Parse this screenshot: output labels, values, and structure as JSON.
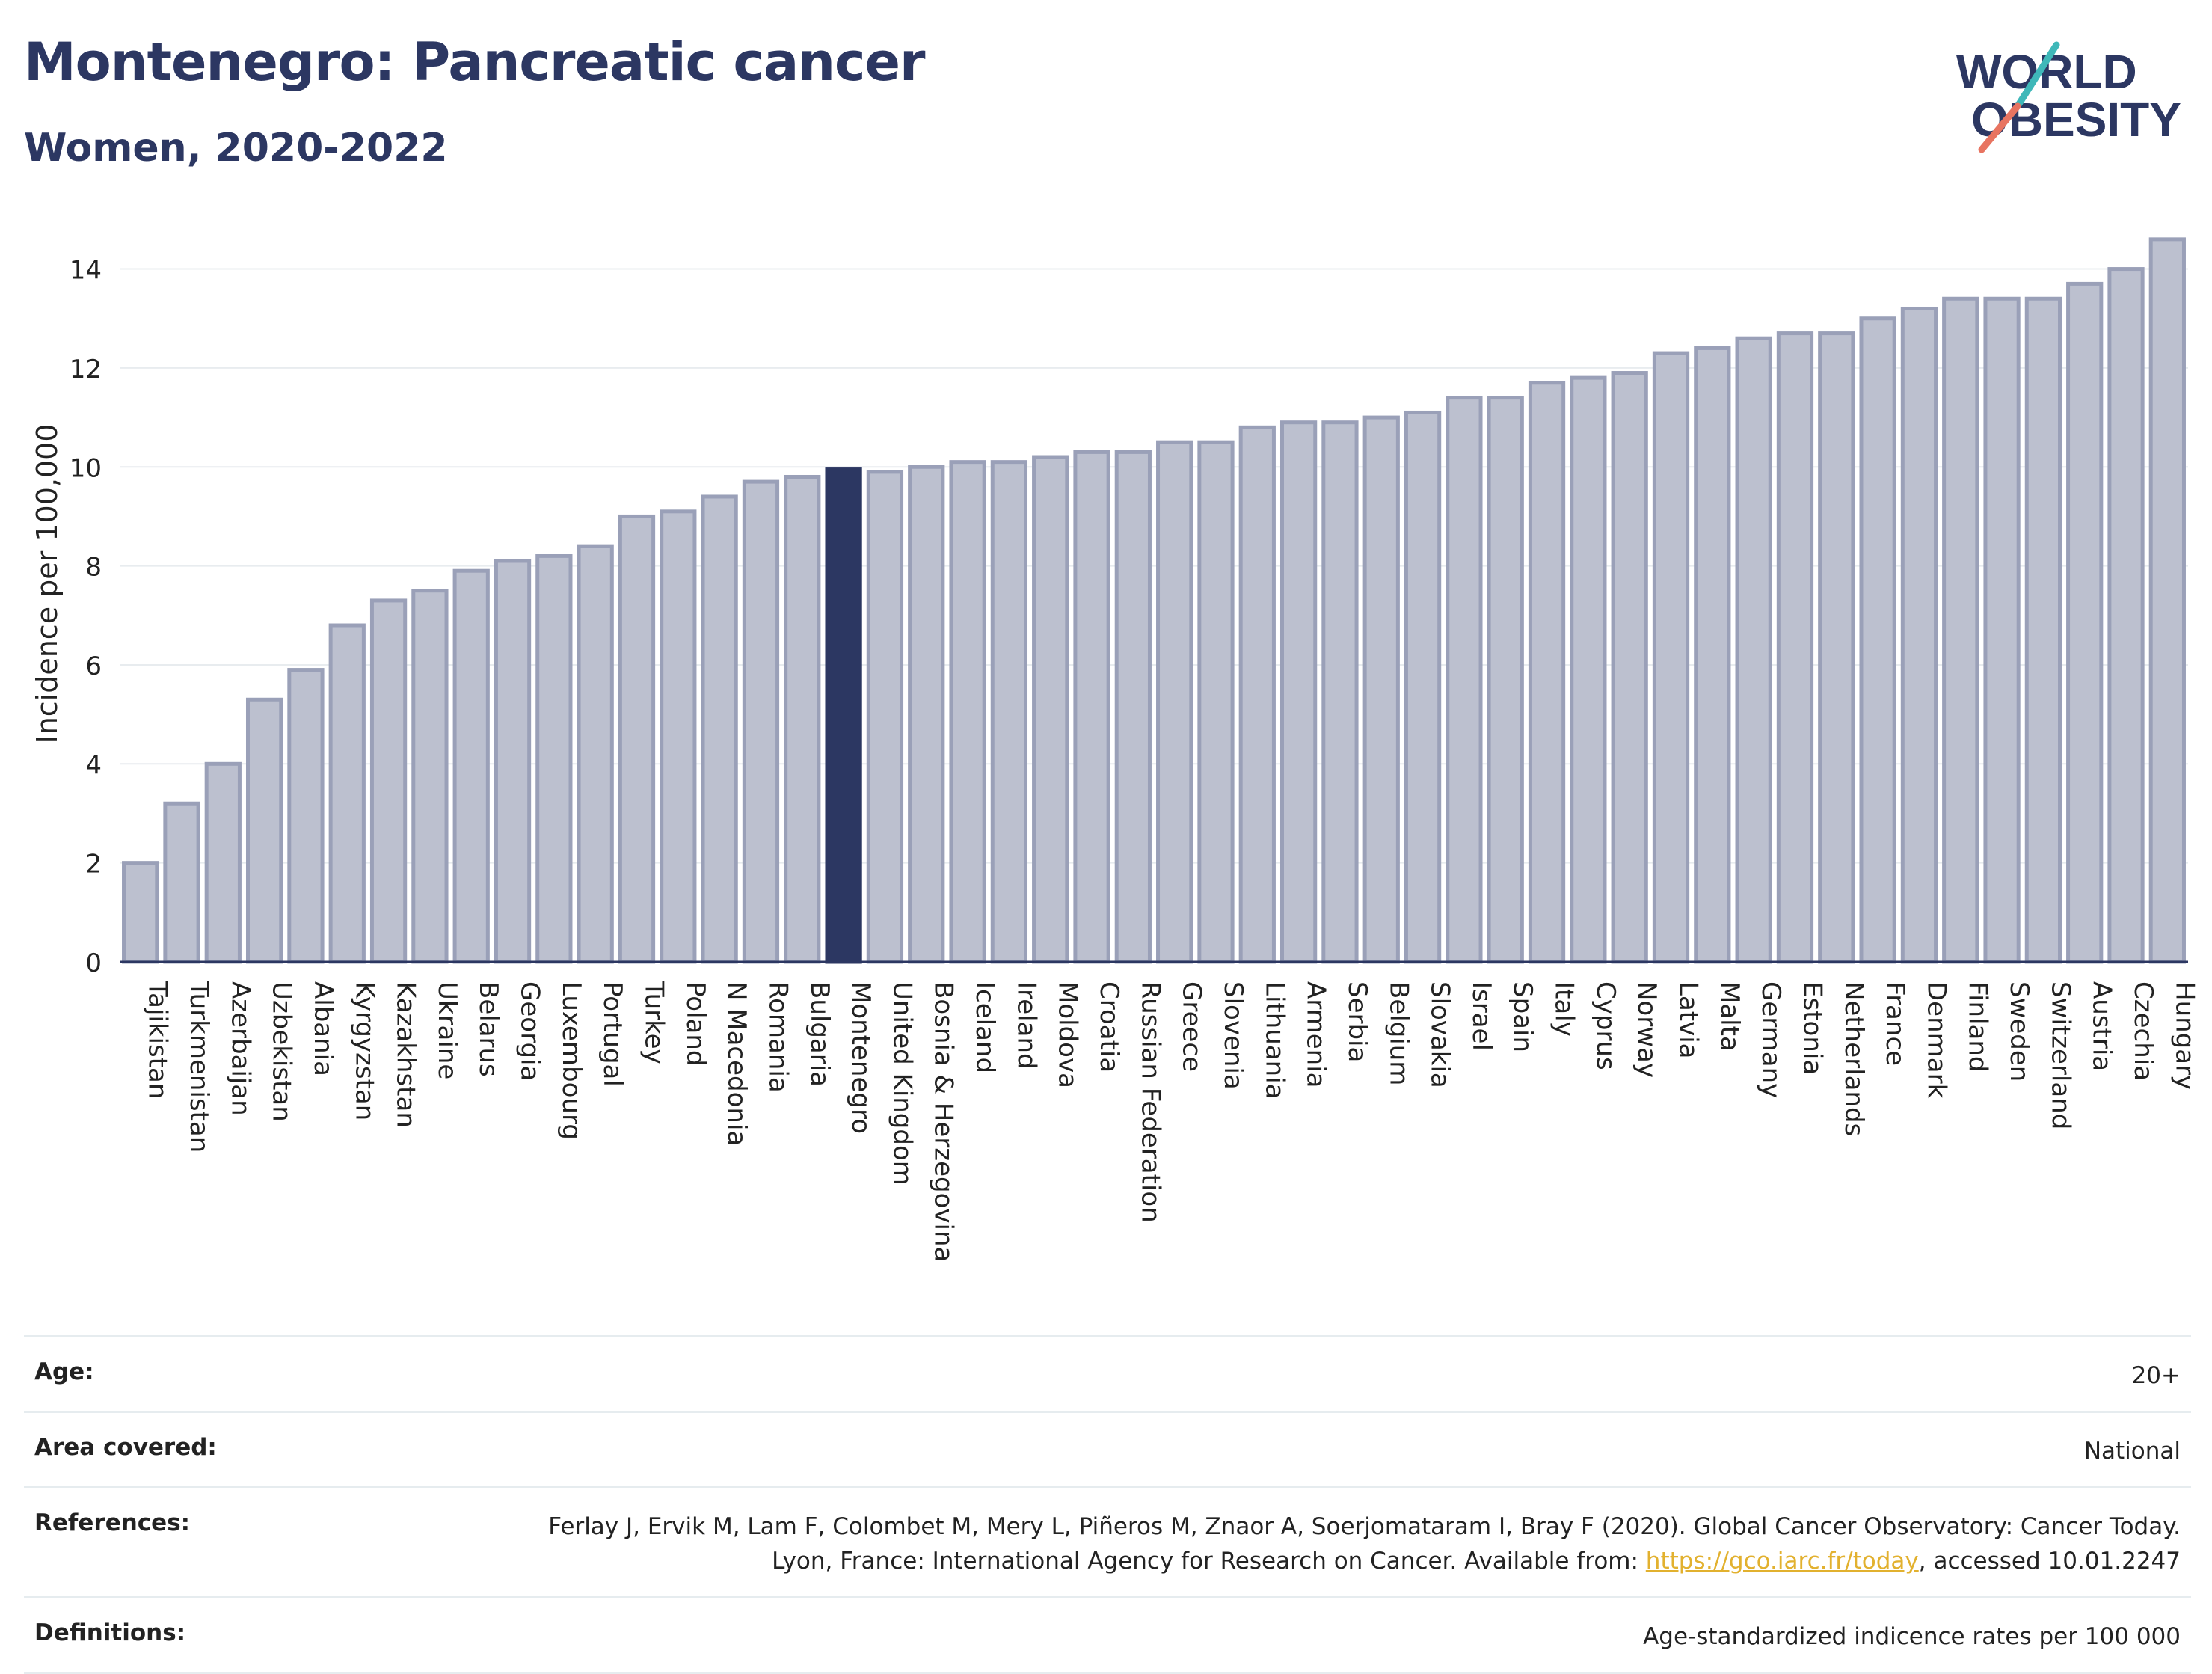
{
  "header": {
    "title": "Montenegro: Pancreatic cancer",
    "subtitle": "Women, 2020-2022"
  },
  "logo": {
    "line1": "WORLD",
    "line2": "OBESITY"
  },
  "colors": {
    "bar": "#bcc0cf",
    "bar_stroke": "#9aa0b8",
    "highlight": "#2c3762",
    "axis": "#2c3762",
    "grid": "#e8ecef",
    "logo_text": "#2c3762",
    "logo_teal": "#3fb8b9",
    "logo_coral": "#e87461"
  },
  "chart_data": {
    "type": "bar",
    "ylabel": "Incidence per 100,000",
    "ylim": [
      0,
      14.9
    ],
    "yticks": [
      0,
      2,
      4,
      6,
      8,
      10,
      12,
      14
    ],
    "grid": true,
    "highlight": "Montenegro",
    "categories": [
      "Tajikistan",
      "Turkmenistan",
      "Azerbaijan",
      "Uzbekistan",
      "Albania",
      "Kyrgyzstan",
      "Kazakhstan",
      "Ukraine",
      "Belarus",
      "Georgia",
      "Luxembourg",
      "Portugal",
      "Turkey",
      "Poland",
      "N Macedonia",
      "Romania",
      "Bulgaria",
      "Montenegro",
      "United Kingdom",
      "Bosnia & Herzegovina",
      "Iceland",
      "Ireland",
      "Moldova",
      "Croatia",
      "Russian Federation",
      "Greece",
      "Slovenia",
      "Lithuania",
      "Armenia",
      "Serbia",
      "Belgium",
      "Slovakia",
      "Israel",
      "Spain",
      "Italy",
      "Cyprus",
      "Norway",
      "Latvia",
      "Malta",
      "Germany",
      "Estonia",
      "Netherlands",
      "France",
      "Denmark",
      "Finland",
      "Sweden",
      "Switzerland",
      "Austria",
      "Czechia",
      "Hungary"
    ],
    "values": [
      2.0,
      3.2,
      4.0,
      5.3,
      5.9,
      6.8,
      7.3,
      7.5,
      7.9,
      8.1,
      8.2,
      8.4,
      9.0,
      9.1,
      9.4,
      9.7,
      9.8,
      9.95,
      9.9,
      10.0,
      10.1,
      10.1,
      10.2,
      10.3,
      10.3,
      10.5,
      10.5,
      10.8,
      10.9,
      10.9,
      11.0,
      11.1,
      11.4,
      11.4,
      11.7,
      11.8,
      11.9,
      12.3,
      12.4,
      12.6,
      12.7,
      12.7,
      13.0,
      13.2,
      13.4,
      13.4,
      13.4,
      13.7,
      14.0,
      14.6
    ]
  },
  "info": {
    "age_label": "Age:",
    "age_value": "20+",
    "area_label": "Area covered:",
    "area_value": "National",
    "references_label": "References:",
    "references_text": "Ferlay J, Ervik M, Lam F, Colombet M, Mery L, Piñeros M, Znaor A, Soerjomataram I, Bray F (2020). Global Cancer Observatory: Cancer Today. Lyon, France: International Agency for Research on Cancer. Available from: ",
    "references_link": "https://gco.iarc.fr/today",
    "references_suffix": ", accessed 10.01.2247",
    "definitions_label": "Definitions:",
    "definitions_value": "Age-standardized indicence rates per 100 000"
  }
}
